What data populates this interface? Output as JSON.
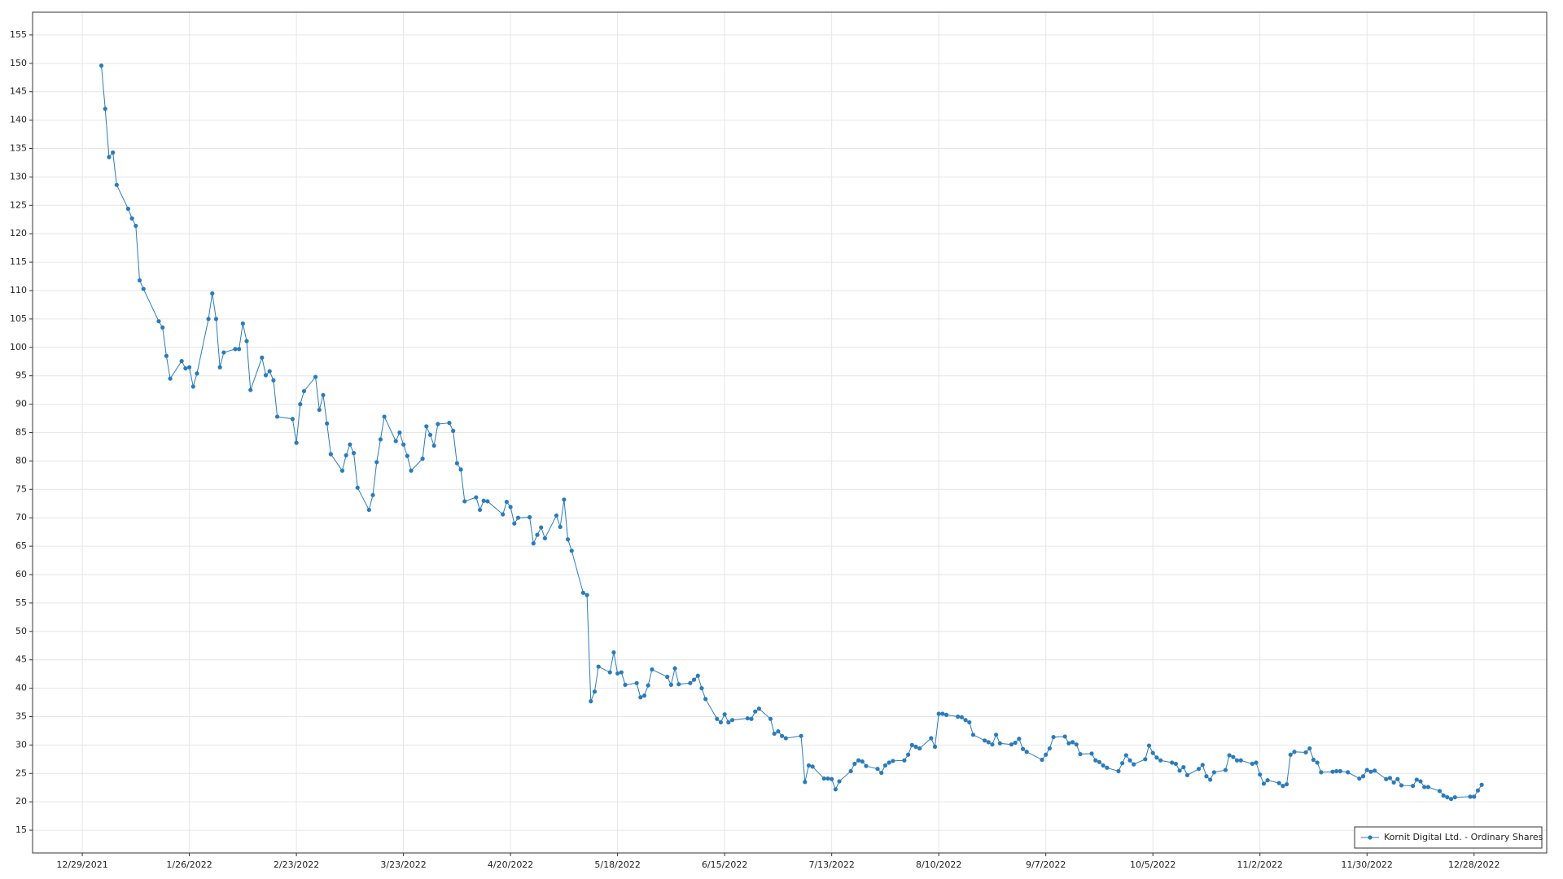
{
  "chart_data": {
    "type": "line",
    "x": [
      "1/3/2022",
      "1/4/2022",
      "1/5/2022",
      "1/6/2022",
      "1/7/2022",
      "1/10/2022",
      "1/11/2022",
      "1/12/2022",
      "1/13/2022",
      "1/14/2022",
      "1/18/2022",
      "1/19/2022",
      "1/20/2022",
      "1/21/2022",
      "1/24/2022",
      "1/25/2022",
      "1/26/2022",
      "1/27/2022",
      "1/28/2022",
      "1/31/2022",
      "2/1/2022",
      "2/2/2022",
      "2/3/2022",
      "2/4/2022",
      "2/7/2022",
      "2/8/2022",
      "2/9/2022",
      "2/10/2022",
      "2/11/2022",
      "2/14/2022",
      "2/15/2022",
      "2/16/2022",
      "2/17/2022",
      "2/18/2022",
      "2/22/2022",
      "2/23/2022",
      "2/24/2022",
      "2/25/2022",
      "2/28/2022",
      "3/1/2022",
      "3/2/2022",
      "3/3/2022",
      "3/4/2022",
      "3/7/2022",
      "3/8/2022",
      "3/9/2022",
      "3/10/2022",
      "3/11/2022",
      "3/14/2022",
      "3/15/2022",
      "3/16/2022",
      "3/17/2022",
      "3/18/2022",
      "3/21/2022",
      "3/22/2022",
      "3/23/2022",
      "3/24/2022",
      "3/25/2022",
      "3/28/2022",
      "3/29/2022",
      "3/30/2022",
      "3/31/2022",
      "4/1/2022",
      "4/4/2022",
      "4/5/2022",
      "4/6/2022",
      "4/7/2022",
      "4/8/2022",
      "4/11/2022",
      "4/12/2022",
      "4/13/2022",
      "4/14/2022",
      "4/18/2022",
      "4/19/2022",
      "4/20/2022",
      "4/21/2022",
      "4/22/2022",
      "4/25/2022",
      "4/26/2022",
      "4/27/2022",
      "4/28/2022",
      "4/29/2022",
      "5/2/2022",
      "5/3/2022",
      "5/4/2022",
      "5/5/2022",
      "5/6/2022",
      "5/9/2022",
      "5/10/2022",
      "5/11/2022",
      "5/12/2022",
      "5/13/2022",
      "5/16/2022",
      "5/17/2022",
      "5/18/2022",
      "5/19/2022",
      "5/20/2022",
      "5/23/2022",
      "5/24/2022",
      "5/25/2022",
      "5/26/2022",
      "5/27/2022",
      "5/31/2022",
      "6/1/2022",
      "6/2/2022",
      "6/3/2022",
      "6/6/2022",
      "6/7/2022",
      "6/8/2022",
      "6/9/2022",
      "6/10/2022",
      "6/13/2022",
      "6/14/2022",
      "6/15/2022",
      "6/16/2022",
      "6/17/2022",
      "6/21/2022",
      "6/22/2022",
      "6/23/2022",
      "6/24/2022",
      "6/27/2022",
      "6/28/2022",
      "6/29/2022",
      "6/30/2022",
      "7/1/2022",
      "7/5/2022",
      "7/6/2022",
      "7/7/2022",
      "7/8/2022",
      "7/11/2022",
      "7/12/2022",
      "7/13/2022",
      "7/14/2022",
      "7/15/2022",
      "7/18/2022",
      "7/19/2022",
      "7/20/2022",
      "7/21/2022",
      "7/22/2022",
      "7/25/2022",
      "7/26/2022",
      "7/27/2022",
      "7/28/2022",
      "7/29/2022",
      "8/1/2022",
      "8/2/2022",
      "8/3/2022",
      "8/4/2022",
      "8/5/2022",
      "8/8/2022",
      "8/9/2022",
      "8/10/2022",
      "8/11/2022",
      "8/12/2022",
      "8/15/2022",
      "8/16/2022",
      "8/17/2022",
      "8/18/2022",
      "8/19/2022",
      "8/22/2022",
      "8/23/2022",
      "8/24/2022",
      "8/25/2022",
      "8/26/2022",
      "8/29/2022",
      "8/30/2022",
      "8/31/2022",
      "9/1/2022",
      "9/2/2022",
      "9/6/2022",
      "9/7/2022",
      "9/8/2022",
      "9/9/2022",
      "9/12/2022",
      "9/13/2022",
      "9/14/2022",
      "9/15/2022",
      "9/16/2022",
      "9/19/2022",
      "9/20/2022",
      "9/21/2022",
      "9/22/2022",
      "9/23/2022",
      "9/26/2022",
      "9/27/2022",
      "9/28/2022",
      "9/29/2022",
      "9/30/2022",
      "10/3/2022",
      "10/4/2022",
      "10/5/2022",
      "10/6/2022",
      "10/7/2022",
      "10/10/2022",
      "10/11/2022",
      "10/12/2022",
      "10/13/2022",
      "10/14/2022",
      "10/17/2022",
      "10/18/2022",
      "10/19/2022",
      "10/20/2022",
      "10/21/2022",
      "10/24/2022",
      "10/25/2022",
      "10/26/2022",
      "10/27/2022",
      "10/28/2022",
      "10/31/2022",
      "11/1/2022",
      "11/2/2022",
      "11/3/2022",
      "11/4/2022",
      "11/7/2022",
      "11/8/2022",
      "11/9/2022",
      "11/10/2022",
      "11/11/2022",
      "11/14/2022",
      "11/15/2022",
      "11/16/2022",
      "11/17/2022",
      "11/18/2022",
      "11/21/2022",
      "11/22/2022",
      "11/23/2022",
      "11/25/2022",
      "11/28/2022",
      "11/29/2022",
      "11/30/2022",
      "12/1/2022",
      "12/2/2022",
      "12/5/2022",
      "12/6/2022",
      "12/7/2022",
      "12/8/2022",
      "12/9/2022",
      "12/12/2022",
      "12/13/2022",
      "12/14/2022",
      "12/15/2022",
      "12/16/2022",
      "12/19/2022",
      "12/20/2022",
      "12/21/2022",
      "12/22/2022",
      "12/23/2022",
      "12/27/2022",
      "12/28/2022",
      "12/29/2022",
      "12/30/2022"
    ],
    "series": [
      {
        "name": "Kornit Digital Ltd. - Ordinary Shares",
        "color": "#2b7bba",
        "values": [
          149.6,
          142,
          133.5,
          134.3,
          128.6,
          124.4,
          122.7,
          121.4,
          111.8,
          110.3,
          104.6,
          103.5,
          98.5,
          94.5,
          97.6,
          96.3,
          96.5,
          93.1,
          95.4,
          105,
          109.5,
          105,
          96.5,
          99.1,
          99.7,
          99.7,
          104.2,
          101.1,
          92.5,
          98.2,
          95.1,
          95.8,
          94.2,
          87.8,
          87.4,
          83.2,
          90,
          92.3,
          94.8,
          89,
          91.6,
          86.6,
          81.2,
          78.3,
          81,
          82.9,
          81.4,
          75.3,
          71.4,
          74,
          79.8,
          83.8,
          87.8,
          83.5,
          85,
          82.9,
          80.9,
          78.3,
          80.4,
          86.1,
          84.6,
          82.7,
          86.5,
          86.7,
          85.3,
          79.6,
          78.5,
          72.9,
          73.6,
          71.4,
          73,
          72.9,
          70.6,
          72.8,
          71.9,
          69,
          70,
          70.1,
          65.5,
          67,
          68.3,
          66.4,
          70.4,
          68.4,
          73.2,
          66.2,
          64.2,
          56.8,
          56.4,
          37.7,
          39.4,
          43.8,
          42.8,
          46.3,
          42.6,
          42.8,
          40.6,
          40.9,
          38.4,
          38.7,
          40.5,
          43.3,
          42,
          40.6,
          43.5,
          40.7,
          40.9,
          41.5,
          42.2,
          40,
          38.1,
          34.6,
          34,
          35.4,
          34,
          34.4,
          34.7,
          34.6,
          35.9,
          36.4,
          34.6,
          32,
          32.4,
          31.6,
          31.2,
          31.6,
          23.5,
          26.4,
          26.2,
          24.1,
          24.1,
          24,
          22.2,
          23.6,
          25.4,
          26.7,
          27.3,
          27.1,
          26.3,
          25.8,
          25.1,
          26.4,
          26.9,
          27.2,
          27.3,
          28.3,
          30,
          29.7,
          29.4,
          31.2,
          29.7,
          35.5,
          35.5,
          35.3,
          35,
          34.9,
          34.4,
          34,
          31.8,
          30.8,
          30.5,
          30.1,
          31.8,
          30.3,
          30.1,
          30.4,
          31.1,
          29.3,
          28.8,
          27.4,
          28.3,
          29.4,
          31.4,
          31.5,
          30.3,
          30.5,
          30.1,
          28.4,
          28.5,
          27.3,
          27,
          26.4,
          26,
          25.4,
          26.8,
          28.2,
          27.3,
          26.6,
          27.5,
          29.9,
          28.6,
          27.8,
          27.3,
          26.9,
          26.7,
          25.5,
          26.1,
          24.7,
          25.8,
          26.5,
          24.5,
          23.9,
          25.2,
          25.6,
          28.2,
          27.9,
          27.3,
          27.3,
          26.7,
          26.9,
          24.8,
          23.2,
          23.8,
          23.3,
          22.8,
          23.1,
          28.3,
          28.8,
          28.7,
          29.4,
          27.4,
          26.9,
          25.2,
          25.3,
          25.4,
          25.4,
          25.2,
          24.1,
          24.5,
          25.6,
          25.3,
          25.5,
          24,
          24.2,
          23.4,
          24,
          22.9,
          22.8,
          23.9,
          23.6,
          22.6,
          22.6,
          21.9,
          21.1,
          20.8,
          20.5,
          20.8,
          20.9,
          20.9,
          22,
          23
        ]
      }
    ],
    "xlim": [
      "12/16/2021",
      "1/16/2023"
    ],
    "xticks": [
      "12/29/2021",
      "1/26/2022",
      "2/23/2022",
      "3/23/2022",
      "4/20/2022",
      "5/18/2022",
      "6/15/2022",
      "7/13/2022",
      "8/10/2022",
      "9/7/2022",
      "10/5/2022",
      "11/2/2022",
      "11/30/2022",
      "12/28/2022"
    ],
    "ylim": [
      11,
      159
    ],
    "yticks": [
      15,
      20,
      25,
      30,
      35,
      40,
      45,
      50,
      55,
      60,
      65,
      70,
      75,
      80,
      85,
      90,
      95,
      100,
      105,
      110,
      115,
      120,
      125,
      130,
      135,
      140,
      145,
      150,
      155
    ],
    "grid": true,
    "markers": true,
    "legend": "lower right"
  }
}
